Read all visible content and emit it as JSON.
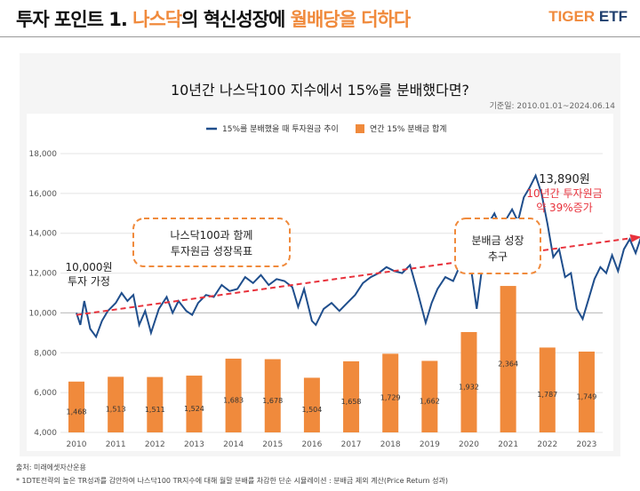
{
  "header": {
    "title_part1": "투자 포인트 1. ",
    "title_orange1": "나스닥",
    "title_part2": "의 혁신성장에 ",
    "title_orange2": "월배당을 더하다",
    "logo_tiger": "TIGER",
    "logo_etf": "ETF"
  },
  "chart_data": {
    "type": "bar+line",
    "title": "10년간 나스닥100 지수에서 15%를 분배했다면?",
    "date_range": "기준일: 2010.01.01~2024.06.14",
    "legend": {
      "line": "15%를 분배했을 때 투자원금 추이",
      "bar": "연간 15% 분배금 합계"
    },
    "legend_placement": "top",
    "ylim": [
      4000,
      18000
    ],
    "yticks": [
      "4,000",
      "6,000",
      "8,000",
      "10,000",
      "12,000",
      "14,000",
      "16,000",
      "18,000"
    ],
    "categories": [
      "2010",
      "2011",
      "2012",
      "2013",
      "2014",
      "2015",
      "2016",
      "2017",
      "2018",
      "2019",
      "2020",
      "2021",
      "2022",
      "2023"
    ],
    "bar_values": [
      1468,
      1513,
      1511,
      1524,
      1683,
      1678,
      1504,
      1658,
      1729,
      1662,
      1932,
      2364,
      1787,
      1749
    ],
    "bar_labels": [
      "1,468",
      "1,513",
      "1,511",
      "1,524",
      "1,683",
      "1,678",
      "1,504",
      "1,658",
      "1,729",
      "1,662",
      "1,932",
      "2,364",
      "1,787",
      "1,749"
    ],
    "line_series": {
      "x": [
        2010.0,
        2010.1,
        2010.2,
        2010.35,
        2010.5,
        2010.65,
        2010.8,
        2011.0,
        2011.15,
        2011.3,
        2011.45,
        2011.6,
        2011.75,
        2011.9,
        2012.1,
        2012.3,
        2012.45,
        2012.6,
        2012.8,
        2012.95,
        2013.1,
        2013.3,
        2013.5,
        2013.7,
        2013.9,
        2014.1,
        2014.3,
        2014.5,
        2014.7,
        2014.9,
        2015.1,
        2015.3,
        2015.5,
        2015.65,
        2015.8,
        2016.0,
        2016.1,
        2016.3,
        2016.5,
        2016.7,
        2016.9,
        2017.1,
        2017.3,
        2017.5,
        2017.7,
        2017.9,
        2018.1,
        2018.3,
        2018.5,
        2018.7,
        2018.9,
        2019.05,
        2019.2,
        2019.4,
        2019.6,
        2019.8,
        2020.0,
        2020.2,
        2020.35,
        2020.5,
        2020.65,
        2020.8,
        2020.95,
        2021.1,
        2021.25,
        2021.4,
        2021.55,
        2021.7,
        2021.85,
        2022.0,
        2022.15,
        2022.3,
        2022.45,
        2022.6,
        2022.75,
        2022.9,
        2023.05,
        2023.2,
        2023.35,
        2023.5,
        2023.65,
        2023.8,
        2023.95,
        2024.1,
        2024.25,
        2024.4
      ],
      "y": [
        10000,
        9400,
        10600,
        9200,
        8800,
        9600,
        10100,
        10500,
        11000,
        10600,
        10900,
        9400,
        10100,
        9000,
        10200,
        10800,
        10000,
        10600,
        10100,
        9900,
        10500,
        10900,
        10800,
        11400,
        11100,
        11200,
        11800,
        11500,
        11900,
        11400,
        11700,
        11600,
        11300,
        10300,
        11200,
        9600,
        9400,
        10200,
        10500,
        10100,
        10500,
        10900,
        11500,
        11800,
        12000,
        12300,
        12100,
        12000,
        12400,
        11000,
        9500,
        10500,
        11200,
        11800,
        11600,
        12500,
        13000,
        10200,
        12500,
        14500,
        15000,
        14300,
        14700,
        15200,
        14600,
        15800,
        16300,
        16900,
        16000,
        14500,
        12800,
        13200,
        11800,
        12000,
        10200,
        9700,
        10700,
        11700,
        12300,
        12000,
        12900,
        12100,
        13200,
        13700,
        13000,
        13890
      ]
    },
    "annotations": {
      "start_value": "10,000원",
      "start_label": "투자 가정",
      "box1_line1": "나스닥100과 함께",
      "box1_line2": "투자원금 성장목표",
      "box2_line1": "분배금 성장",
      "box2_line2": "추구",
      "end_value": "13,890원",
      "end_line1": "10년간 투자원금",
      "end_line2": "약 39%증가"
    },
    "colors": {
      "line": "#1f4e8c",
      "bar": "#f08a3c",
      "trend": "#e8323c",
      "box": "#f08a3c"
    }
  },
  "footer": {
    "source": "출처: 미래에셋자산운용",
    "note": "* 1DTE전략의 높은 TR성과를 감안하여 나스닥100 TR지수에 대해 월말 분배를 차감한 단순 시뮬레이션 : 분배금 제외 계산(Price Return 성과)"
  }
}
